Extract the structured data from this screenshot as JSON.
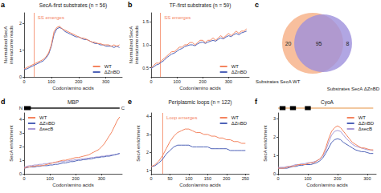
{
  "chart_data": [
    {
      "type": "line",
      "panel": "a",
      "title": "SecA-first substrates (n = 56)",
      "xlabel": "Codon/amino acids",
      "ylabel": "Normalized SecA interactome reads",
      "xlim": [
        0,
        360
      ],
      "xticks": [
        0,
        100,
        200,
        300
      ],
      "ylim": [
        0,
        2.4
      ],
      "yticks": [
        0,
        1,
        2
      ],
      "grid": false,
      "legend": "lower right",
      "annotations": [
        {
          "text": "SS emerges",
          "x": 35
        }
      ],
      "x": [
        0,
        10,
        20,
        30,
        40,
        50,
        60,
        70,
        80,
        90,
        100,
        110,
        120,
        130,
        140,
        150,
        160,
        170,
        180,
        190,
        200,
        210,
        220,
        230,
        240,
        250,
        260,
        270,
        280,
        290,
        300,
        310,
        320,
        330,
        340,
        350
      ],
      "series": [
        {
          "name": "WT",
          "color": "#f4845f",
          "values": [
            0.3,
            0.35,
            0.4,
            0.45,
            0.5,
            0.55,
            0.6,
            0.65,
            0.75,
            0.9,
            1.2,
            1.7,
            1.85,
            1.9,
            1.8,
            1.75,
            1.7,
            1.65,
            1.6,
            1.55,
            1.5,
            1.45,
            1.45,
            1.4,
            1.35,
            1.3,
            1.3,
            1.25,
            1.25,
            1.2,
            1.2,
            1.2,
            1.15,
            1.2,
            1.15,
            1.2
          ]
        },
        {
          "name": "ΔZnBD",
          "color": "#4f63b8",
          "values": [
            0.28,
            0.3,
            0.35,
            0.4,
            0.45,
            0.5,
            0.55,
            0.6,
            0.7,
            0.85,
            1.15,
            1.6,
            1.8,
            1.85,
            1.8,
            1.7,
            1.65,
            1.6,
            1.55,
            1.5,
            1.5,
            1.45,
            1.4,
            1.4,
            1.35,
            1.3,
            1.25,
            1.25,
            1.2,
            1.2,
            1.15,
            1.15,
            1.15,
            1.1,
            1.15,
            1.1
          ]
        }
      ]
    },
    {
      "type": "line",
      "panel": "b",
      "title": "TF-first substrates (n = 59)",
      "xlabel": "Codon/amino acids",
      "ylabel": "Normalized SecA interactome reads",
      "xlim": [
        0,
        380
      ],
      "xticks": [
        0,
        100,
        200,
        300
      ],
      "ylim": [
        0.3,
        1.7
      ],
      "yticks": [
        0.5,
        {
          "value": 1,
          "label": "1.0"
        },
        1.5
      ],
      "grid": false,
      "legend": "lower right",
      "annotations": [
        {
          "text": "SS emerges",
          "x": 35
        }
      ],
      "x": [
        0,
        10,
        20,
        30,
        40,
        50,
        60,
        70,
        80,
        90,
        100,
        110,
        120,
        130,
        140,
        150,
        160,
        170,
        180,
        190,
        200,
        210,
        220,
        230,
        240,
        250,
        260,
        270,
        280,
        290,
        300,
        310,
        320,
        330,
        340,
        350,
        360,
        370
      ],
      "series": [
        {
          "name": "WT",
          "color": "#f4845f",
          "values": [
            0.5,
            0.55,
            0.6,
            0.6,
            0.65,
            0.7,
            0.75,
            0.8,
            0.85,
            0.85,
            0.9,
            0.95,
            0.95,
            1.0,
            1.0,
            1.05,
            1.05,
            1.0,
            1.05,
            1.1,
            1.1,
            1.05,
            1.1,
            1.1,
            1.15,
            1.1,
            1.15,
            1.2,
            1.15,
            1.2,
            1.25,
            1.2,
            1.25,
            1.3,
            1.25,
            1.3,
            1.3,
            1.35
          ]
        },
        {
          "name": "ΔZnBD",
          "color": "#4f63b8",
          "values": [
            0.48,
            0.52,
            0.56,
            0.58,
            0.62,
            0.66,
            0.72,
            0.76,
            0.8,
            0.82,
            0.86,
            0.9,
            0.92,
            0.96,
            0.98,
            1.0,
            1.0,
            0.98,
            1.02,
            1.05,
            1.06,
            1.03,
            1.06,
            1.08,
            1.1,
            1.08,
            1.12,
            1.15,
            1.13,
            1.17,
            1.2,
            1.18,
            1.22,
            1.25,
            1.22,
            1.26,
            1.28,
            1.3
          ]
        }
      ]
    },
    {
      "type": "venn",
      "panel": "c",
      "sets": [
        {
          "name": "Substrates SecA WT",
          "color": "#f7b48c"
        },
        {
          "name": "Substrates SecA ΔZnBD",
          "color": "#9d90dc"
        }
      ],
      "values": [
        20,
        95,
        8
      ]
    },
    {
      "type": "line",
      "panel": "d",
      "title": "MBP",
      "xlabel": "Codon/amino acids",
      "ylabel": "SecA enrichment",
      "xlim": [
        0,
        380
      ],
      "xticks": [
        0,
        100,
        200,
        300
      ],
      "ylim": [
        0,
        4.5
      ],
      "yticks": [
        0,
        1,
        2,
        3,
        4
      ],
      "grid": false,
      "legend": "upper left",
      "domain": {
        "labels": [
          "N",
          "C"
        ],
        "segments": [
          [
            0,
            26
          ]
        ],
        "color": "#555555"
      },
      "x": [
        0,
        10,
        20,
        30,
        40,
        50,
        60,
        70,
        80,
        90,
        100,
        110,
        120,
        130,
        140,
        150,
        160,
        170,
        180,
        190,
        200,
        210,
        220,
        230,
        240,
        250,
        260,
        270,
        280,
        290,
        300,
        310,
        320,
        330,
        340,
        350,
        360,
        370
      ],
      "series": [
        {
          "name": "WT",
          "color": "#f4845f",
          "values": [
            0.4,
            0.5,
            0.5,
            0.55,
            0.55,
            0.6,
            0.6,
            0.6,
            0.65,
            0.7,
            0.75,
            0.8,
            0.85,
            0.9,
            0.95,
            1.0,
            1.0,
            1.05,
            1.1,
            1.15,
            1.2,
            1.2,
            1.25,
            1.3,
            1.35,
            1.4,
            1.5,
            1.6,
            1.7,
            1.8,
            2.0,
            2.2,
            2.5,
            2.8,
            3.1,
            3.5,
            3.9,
            4.2
          ]
        },
        {
          "name": "ΔZnBD",
          "color": "#4f63b8",
          "values": [
            0.4,
            0.45,
            0.5,
            0.5,
            0.5,
            0.55,
            0.55,
            0.6,
            0.6,
            0.6,
            0.65,
            0.65,
            0.7,
            0.7,
            0.75,
            0.8,
            0.8,
            0.85,
            0.9,
            0.9,
            0.95,
            1.0,
            1.0,
            1.05,
            1.05,
            1.1,
            1.1,
            1.15,
            1.2,
            1.2,
            1.25,
            1.25,
            1.3,
            1.3,
            1.35,
            1.4,
            1.45,
            1.5
          ]
        },
        {
          "name": "ΔsecB",
          "color": "#a99ad6",
          "values": [
            0.5,
            0.55,
            0.6,
            0.6,
            0.65,
            0.65,
            0.7,
            0.7,
            0.75,
            0.75,
            0.8,
            0.8,
            0.85,
            0.85,
            0.9,
            0.9,
            0.95,
            0.95,
            1.0,
            1.0,
            1.05,
            1.05,
            1.1,
            1.1,
            1.15,
            1.15,
            1.2,
            1.2,
            1.25,
            1.25,
            1.3,
            1.3,
            1.35,
            1.35,
            1.4,
            1.4,
            1.45,
            1.5
          ]
        }
      ]
    },
    {
      "type": "line",
      "panel": "e",
      "title": "Periplasmic loops (n = 122)",
      "xlabel": "Codon/amino acids",
      "ylabel": "SecA enrichment",
      "xlim": [
        0,
        260
      ],
      "xticks": [
        0,
        50,
        100,
        150,
        200,
        250
      ],
      "ylim": [
        0.8,
        4.2
      ],
      "yticks": [
        1,
        2,
        3,
        4
      ],
      "grid": false,
      "legend": "upper right",
      "annotations": [
        {
          "text": "Loop emerges",
          "x": 30
        }
      ],
      "x": [
        0,
        10,
        20,
        30,
        40,
        50,
        60,
        70,
        80,
        90,
        100,
        110,
        120,
        130,
        140,
        150,
        160,
        170,
        180,
        190,
        200,
        210,
        220,
        230,
        240,
        250
      ],
      "series": [
        {
          "name": "WT",
          "color": "#f4845f",
          "values": [
            1.2,
            1.3,
            1.5,
            1.8,
            2.2,
            2.6,
            2.9,
            3.1,
            3.2,
            3.3,
            3.3,
            3.2,
            3.1,
            3.1,
            3.0,
            3.0,
            2.9,
            2.9,
            2.8,
            2.8,
            2.7,
            2.7,
            2.6,
            2.6,
            2.5,
            2.5
          ]
        },
        {
          "name": "ΔZnBD",
          "color": "#4f63b8",
          "values": [
            1.2,
            1.25,
            1.4,
            1.6,
            1.9,
            2.1,
            2.3,
            2.4,
            2.4,
            2.4,
            2.4,
            2.3,
            2.3,
            2.3,
            2.3,
            2.3,
            2.2,
            2.2,
            2.2,
            2.2,
            2.2,
            2.1,
            2.1,
            2.1,
            2.1,
            2.1
          ]
        }
      ]
    },
    {
      "type": "line",
      "panel": "f",
      "title": "CyoA",
      "xlabel": "Codon/amino acids",
      "ylabel": "SecA enrichment",
      "xlim": [
        0,
        330
      ],
      "xticks": [
        0,
        100,
        200,
        300
      ],
      "ylim": [
        0,
        3.3
      ],
      "yticks": [
        0,
        1,
        2,
        3
      ],
      "grid": false,
      "legend": "upper right",
      "domain": {
        "segments": [
          [
            5,
            25
          ],
          [
            40,
            60
          ],
          [
            90,
            110
          ]
        ],
        "color": "#f2c8a0"
      },
      "x": [
        0,
        10,
        20,
        30,
        40,
        50,
        60,
        70,
        80,
        90,
        100,
        110,
        120,
        130,
        140,
        150,
        160,
        170,
        180,
        190,
        200,
        210,
        220,
        230,
        240,
        250,
        260,
        270,
        280,
        290,
        300,
        310,
        320
      ],
      "series": [
        {
          "name": "WT",
          "color": "#f4845f",
          "values": [
            0.3,
            0.3,
            0.3,
            0.35,
            0.4,
            0.4,
            0.45,
            0.5,
            0.5,
            0.5,
            0.55,
            0.6,
            0.6,
            0.7,
            0.8,
            1.0,
            1.4,
            1.9,
            2.3,
            2.5,
            2.6,
            2.5,
            2.3,
            2.1,
            1.9,
            1.7,
            1.6,
            1.5,
            1.4,
            1.4,
            1.35,
            1.3,
            1.3
          ]
        },
        {
          "name": "ΔZnBD",
          "color": "#4f63b8",
          "values": [
            0.3,
            0.3,
            0.3,
            0.3,
            0.35,
            0.4,
            0.4,
            0.45,
            0.45,
            0.5,
            0.5,
            0.5,
            0.55,
            0.6,
            0.7,
            0.85,
            1.1,
            1.4,
            1.7,
            1.85,
            1.9,
            1.85,
            1.7,
            1.6,
            1.5,
            1.4,
            1.3,
            1.25,
            1.2,
            1.2,
            1.15,
            1.1,
            1.1
          ]
        },
        {
          "name": "ΔsecB",
          "color": "#a99ad6",
          "values": [
            0.35,
            0.35,
            0.35,
            0.4,
            0.4,
            0.45,
            0.5,
            0.5,
            0.55,
            0.55,
            0.6,
            0.6,
            0.65,
            0.7,
            0.8,
            0.95,
            1.25,
            1.7,
            2.1,
            2.3,
            2.35,
            2.3,
            2.1,
            1.9,
            1.75,
            1.6,
            1.5,
            1.45,
            1.4,
            1.35,
            1.3,
            1.3,
            1.25
          ]
        }
      ]
    }
  ]
}
